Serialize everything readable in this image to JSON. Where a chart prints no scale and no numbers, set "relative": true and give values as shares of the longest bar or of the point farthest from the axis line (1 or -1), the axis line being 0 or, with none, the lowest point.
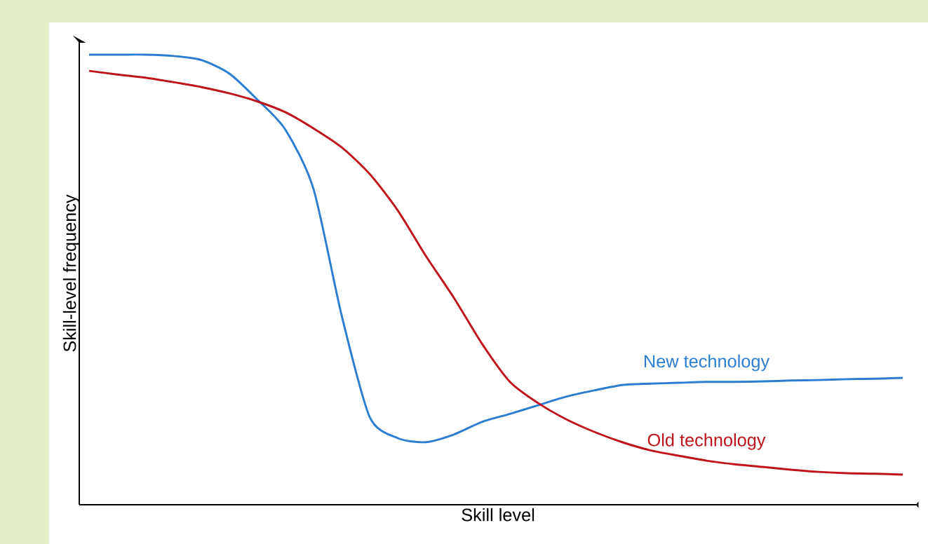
{
  "chart_data": {
    "type": "line",
    "relative": true,
    "xlabel": "Skill level",
    "ylabel": "Skill-level frequency",
    "categories": [
      null,
      null,
      null,
      null,
      null,
      null,
      null,
      null,
      null,
      null,
      null,
      null,
      null,
      null,
      null,
      null,
      null,
      null,
      null,
      null,
      null,
      null,
      null,
      null,
      null,
      null,
      null,
      null,
      null,
      null
    ],
    "series": [
      {
        "name": "New technology",
        "color": "#2a7dd1",
        "values": [
          1.0,
          1.0,
          1.0,
          0.997,
          0.988,
          0.958,
          0.9,
          0.833,
          0.701,
          0.421,
          0.195,
          0.148,
          0.139,
          0.156,
          0.184,
          0.202,
          0.221,
          0.24,
          0.254,
          0.266,
          0.269,
          0.271,
          0.273,
          0.273,
          0.274,
          0.276,
          0.277,
          0.279,
          0.28,
          0.282
        ]
      },
      {
        "name": "Old technology",
        "color": "#c0141c",
        "values": [
          0.964,
          0.956,
          0.949,
          0.939,
          0.928,
          0.914,
          0.896,
          0.872,
          0.836,
          0.794,
          0.735,
          0.654,
          0.553,
          0.46,
          0.358,
          0.273,
          0.226,
          0.19,
          0.162,
          0.139,
          0.121,
          0.109,
          0.098,
          0.09,
          0.084,
          0.078,
          0.073,
          0.07,
          0.069,
          0.067
        ]
      }
    ]
  }
}
